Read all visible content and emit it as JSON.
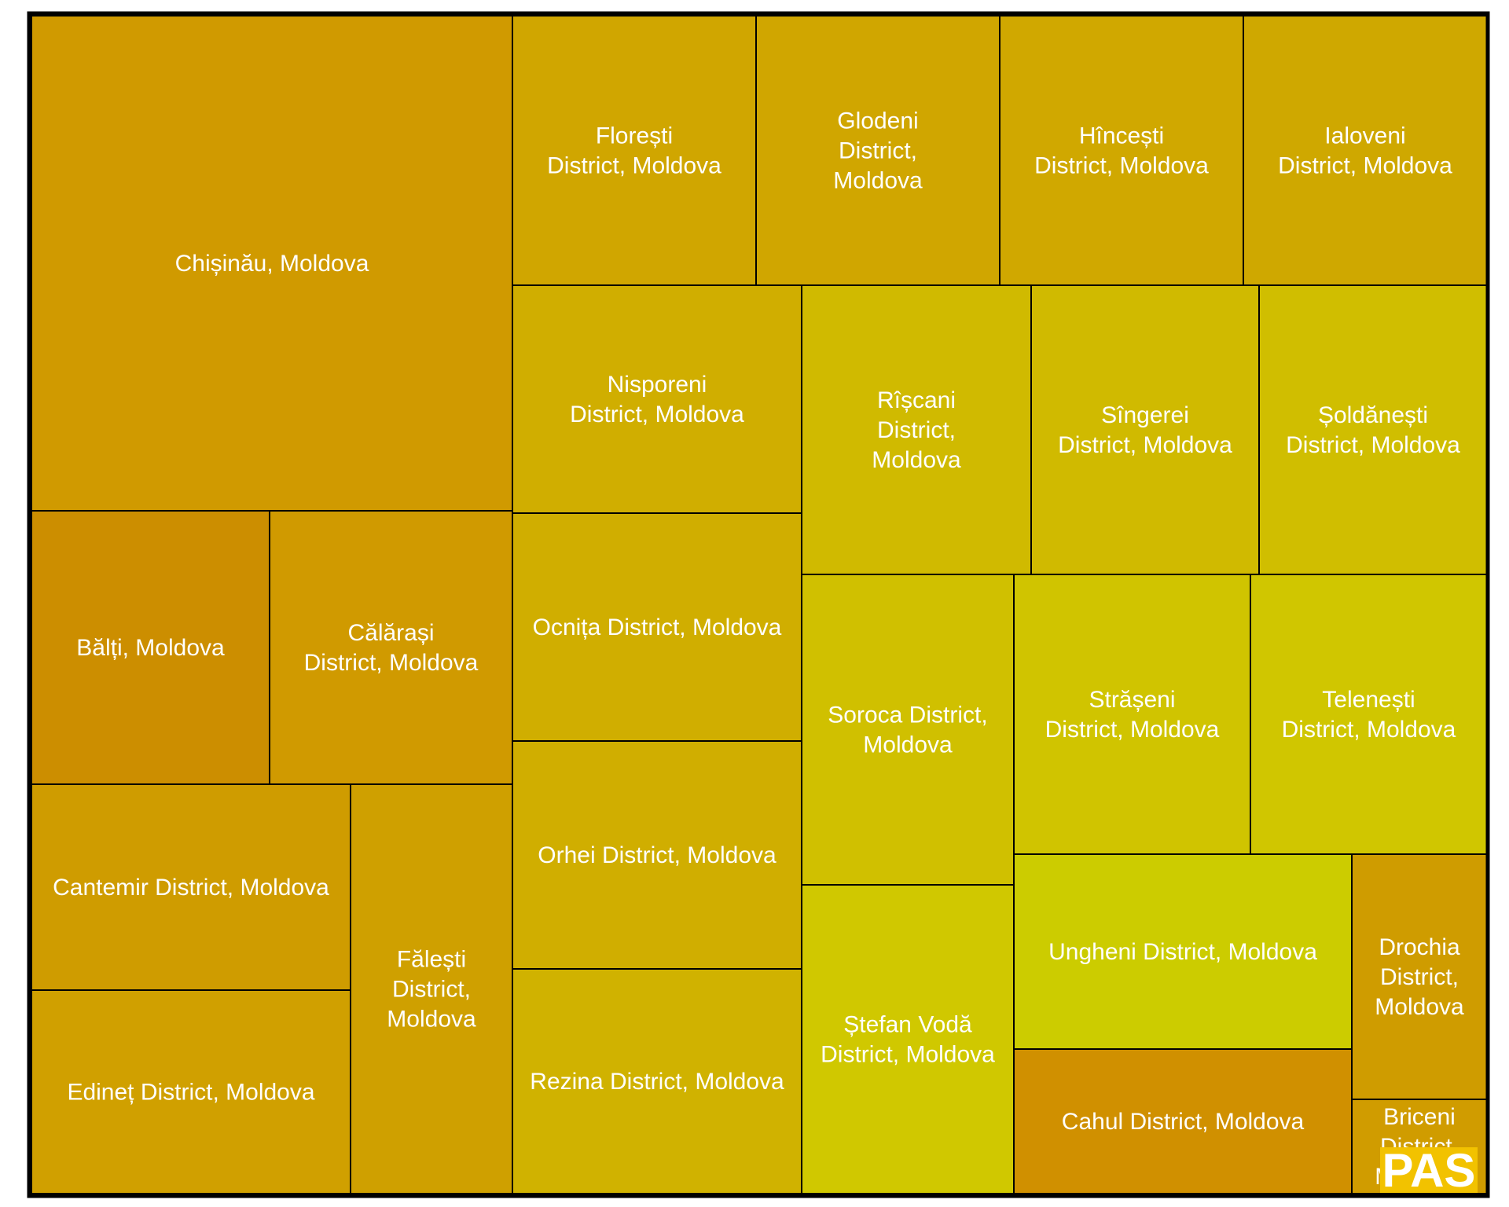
{
  "chart_data": {
    "type": "treemap",
    "cells": [
      {
        "name": "Chișinău, Moldova",
        "lines": [
          "Chișinău, Moldova"
        ],
        "color": "#d09a00"
      },
      {
        "name": "Bălți, Moldova",
        "lines": [
          "Bălți, Moldova"
        ],
        "color": "#cc8e00"
      },
      {
        "name": "Călărași District, Moldova",
        "lines": [
          "Călărași",
          "District, Moldova"
        ],
        "color": "#d09a00"
      },
      {
        "name": "Cantemir District, Moldova",
        "lines": [
          "Cantemir District, Moldova"
        ],
        "color": "#cf9c00"
      },
      {
        "name": "Edineț District, Moldova",
        "lines": [
          "Edineț District, Moldova"
        ],
        "color": "#d0a000"
      },
      {
        "name": "Fălești District, Moldova",
        "lines": [
          "Fălești",
          "District,",
          "Moldova"
        ],
        "color": "#cfa000"
      },
      {
        "name": "Florești District, Moldova",
        "lines": [
          "Florești",
          "District, Moldova"
        ],
        "color": "#d0a600"
      },
      {
        "name": "Glodeni District, Moldova",
        "lines": [
          "Glodeni",
          "District,",
          "Moldova"
        ],
        "color": "#d0a600"
      },
      {
        "name": "Hîncești District, Moldova",
        "lines": [
          "Hîncești",
          "District, Moldova"
        ],
        "color": "#d0a800"
      },
      {
        "name": "Ialoveni District, Moldova",
        "lines": [
          "Ialoveni",
          "District, Moldova"
        ],
        "color": "#cfa800"
      },
      {
        "name": "Nisporeni District, Moldova",
        "lines": [
          "Nisporeni",
          "District, Moldova"
        ],
        "color": "#d0ae00"
      },
      {
        "name": "Ocnița District, Moldova",
        "lines": [
          "Ocnița District, Moldova"
        ],
        "color": "#d0ae00"
      },
      {
        "name": "Orhei District, Moldova",
        "lines": [
          "Orhei District, Moldova"
        ],
        "color": "#d0ae00"
      },
      {
        "name": "Rezina District, Moldova",
        "lines": [
          "Rezina District, Moldova"
        ],
        "color": "#d0b200"
      },
      {
        "name": "Rîșcani District, Moldova",
        "lines": [
          "Rîșcani",
          "District,",
          "Moldova"
        ],
        "color": "#d0ba00"
      },
      {
        "name": "Sîngerei District, Moldova",
        "lines": [
          "Sîngerei",
          "District, Moldova"
        ],
        "color": "#d0ba00"
      },
      {
        "name": "Șoldănești District, Moldova",
        "lines": [
          "Șoldănești",
          "District, Moldova"
        ],
        "color": "#d0be00"
      },
      {
        "name": "Soroca District, Moldova",
        "lines": [
          "Soroca District,",
          "Moldova"
        ],
        "color": "#d0c000"
      },
      {
        "name": "Strășeni District, Moldova",
        "lines": [
          "Strășeni",
          "District, Moldova"
        ],
        "color": "#d0c400"
      },
      {
        "name": "Telenești District, Moldova",
        "lines": [
          "Telenești",
          "District, Moldova"
        ],
        "color": "#d0c600"
      },
      {
        "name": "Ștefan Vodă District, Moldova",
        "lines": [
          "Ștefan Vodă",
          "District, Moldova"
        ],
        "color": "#d0c800"
      },
      {
        "name": "Ungheni District, Moldova",
        "lines": [
          "Ungheni District, Moldova"
        ],
        "color": "#cccc00"
      },
      {
        "name": "Cahul District, Moldova",
        "lines": [
          "Cahul District, Moldova"
        ],
        "color": "#d09000"
      },
      {
        "name": "Drochia District, Moldova",
        "lines": [
          "Drochia",
          "District,",
          "Moldova"
        ],
        "color": "#cf9c00"
      },
      {
        "name": "Briceni District, Moldova",
        "lines": [
          "Briceni",
          "District,",
          "Moldova"
        ],
        "color": "#d09c00"
      }
    ]
  },
  "logo": {
    "text": "PAS",
    "color": "#f2c200"
  }
}
